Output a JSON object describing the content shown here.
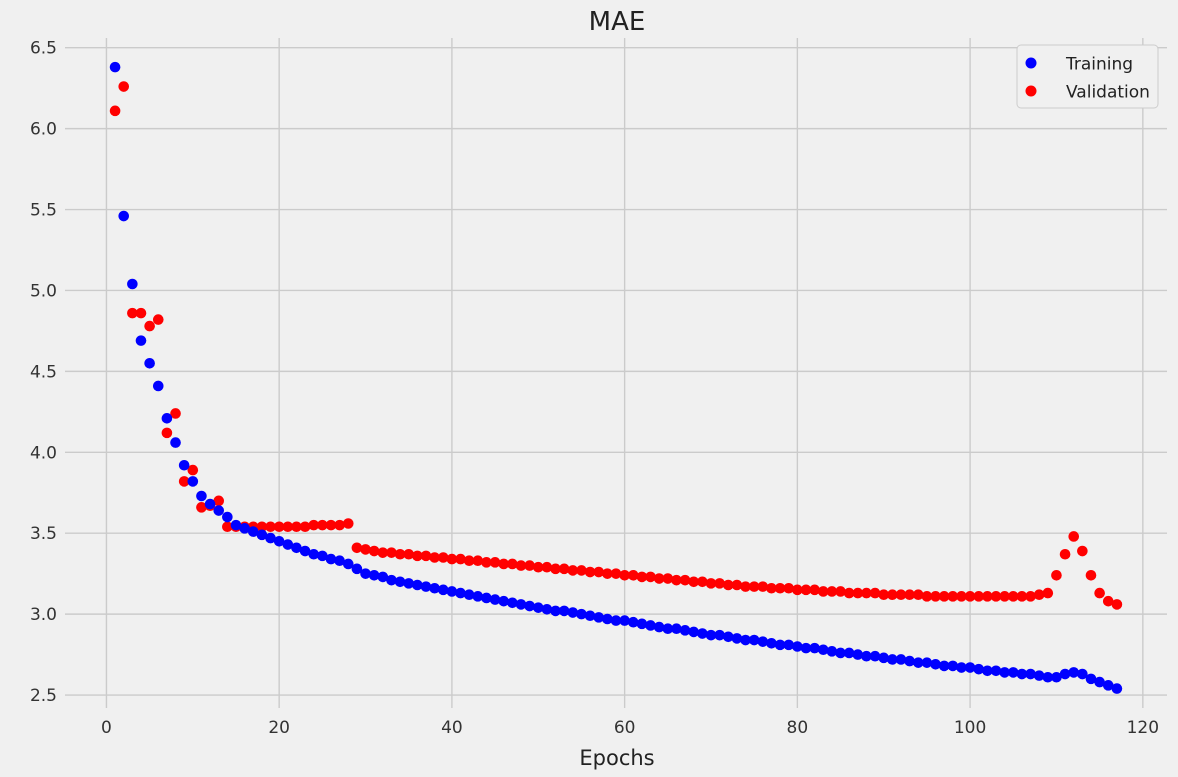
{
  "chart_data": {
    "type": "scatter",
    "title": "MAE",
    "xlabel": "Epochs",
    "ylabel": "",
    "xlim": [
      -4.8,
      122.8
    ],
    "ylim": [
      2.42,
      6.56
    ],
    "xticks": [
      0,
      20,
      40,
      60,
      80,
      100,
      120
    ],
    "yticks": [
      2.5,
      3.0,
      3.5,
      4.0,
      4.5,
      5.0,
      5.5,
      6.0,
      6.5
    ],
    "grid": true,
    "legend_position": "top-right",
    "colors": {
      "Training": "#0000ff",
      "Validation": "#ff0000"
    },
    "series": [
      {
        "name": "Training",
        "x": [
          1,
          2,
          3,
          4,
          5,
          6,
          7,
          8,
          9,
          10,
          11,
          12,
          13,
          14,
          15,
          16,
          17,
          18,
          19,
          20,
          21,
          22,
          23,
          24,
          25,
          26,
          27,
          28,
          29,
          30,
          31,
          32,
          33,
          34,
          35,
          36,
          37,
          38,
          39,
          40,
          41,
          42,
          43,
          44,
          45,
          46,
          47,
          48,
          49,
          50,
          51,
          52,
          53,
          54,
          55,
          56,
          57,
          58,
          59,
          60,
          61,
          62,
          63,
          64,
          65,
          66,
          67,
          68,
          69,
          70,
          71,
          72,
          73,
          74,
          75,
          76,
          77,
          78,
          79,
          80,
          81,
          82,
          83,
          84,
          85,
          86,
          87,
          88,
          89,
          90,
          91,
          92,
          93,
          94,
          95,
          96,
          97,
          98,
          99,
          100,
          101,
          102,
          103,
          104,
          105,
          106,
          107,
          108,
          109,
          110,
          111,
          112,
          113,
          114,
          115,
          116,
          117
        ],
        "y": [
          6.38,
          5.46,
          5.04,
          4.69,
          4.55,
          4.41,
          4.21,
          4.06,
          3.92,
          3.82,
          3.73,
          3.68,
          3.64,
          3.6,
          3.55,
          3.53,
          3.51,
          3.49,
          3.47,
          3.45,
          3.43,
          3.41,
          3.39,
          3.37,
          3.36,
          3.34,
          3.33,
          3.31,
          3.28,
          3.25,
          3.24,
          3.23,
          3.21,
          3.2,
          3.19,
          3.18,
          3.17,
          3.16,
          3.15,
          3.14,
          3.13,
          3.12,
          3.11,
          3.1,
          3.09,
          3.08,
          3.07,
          3.06,
          3.05,
          3.04,
          3.03,
          3.02,
          3.02,
          3.01,
          3.0,
          2.99,
          2.98,
          2.97,
          2.96,
          2.96,
          2.95,
          2.94,
          2.93,
          2.92,
          2.91,
          2.91,
          2.9,
          2.89,
          2.88,
          2.87,
          2.87,
          2.86,
          2.85,
          2.84,
          2.84,
          2.83,
          2.82,
          2.81,
          2.81,
          2.8,
          2.79,
          2.79,
          2.78,
          2.77,
          2.76,
          2.76,
          2.75,
          2.74,
          2.74,
          2.73,
          2.72,
          2.72,
          2.71,
          2.7,
          2.7,
          2.69,
          2.68,
          2.68,
          2.67,
          2.67,
          2.66,
          2.65,
          2.65,
          2.64,
          2.64,
          2.63,
          2.63,
          2.62,
          2.61,
          2.61,
          2.63,
          2.64,
          2.63,
          2.6,
          2.58,
          2.56,
          2.54
        ]
      },
      {
        "name": "Validation",
        "x": [
          1,
          2,
          3,
          4,
          5,
          6,
          7,
          8,
          9,
          10,
          11,
          12,
          13,
          14,
          15,
          16,
          17,
          18,
          19,
          20,
          21,
          22,
          23,
          24,
          25,
          26,
          27,
          28,
          29,
          30,
          31,
          32,
          33,
          34,
          35,
          36,
          37,
          38,
          39,
          40,
          41,
          42,
          43,
          44,
          45,
          46,
          47,
          48,
          49,
          50,
          51,
          52,
          53,
          54,
          55,
          56,
          57,
          58,
          59,
          60,
          61,
          62,
          63,
          64,
          65,
          66,
          67,
          68,
          69,
          70,
          71,
          72,
          73,
          74,
          75,
          76,
          77,
          78,
          79,
          80,
          81,
          82,
          83,
          84,
          85,
          86,
          87,
          88,
          89,
          90,
          91,
          92,
          93,
          94,
          95,
          96,
          97,
          98,
          99,
          100,
          101,
          102,
          103,
          104,
          105,
          106,
          107,
          108,
          109,
          110,
          111,
          112,
          113,
          114,
          115,
          116,
          117
        ],
        "y": [
          6.11,
          6.26,
          4.86,
          4.86,
          4.78,
          4.82,
          4.12,
          4.24,
          3.82,
          3.89,
          3.66,
          3.67,
          3.7,
          3.54,
          3.54,
          3.54,
          3.54,
          3.54,
          3.54,
          3.54,
          3.54,
          3.54,
          3.54,
          3.55,
          3.55,
          3.55,
          3.55,
          3.56,
          3.41,
          3.4,
          3.39,
          3.38,
          3.38,
          3.37,
          3.37,
          3.36,
          3.36,
          3.35,
          3.35,
          3.34,
          3.34,
          3.33,
          3.33,
          3.32,
          3.32,
          3.31,
          3.31,
          3.3,
          3.3,
          3.29,
          3.29,
          3.28,
          3.28,
          3.27,
          3.27,
          3.26,
          3.26,
          3.25,
          3.25,
          3.24,
          3.24,
          3.23,
          3.23,
          3.22,
          3.22,
          3.21,
          3.21,
          3.2,
          3.2,
          3.19,
          3.19,
          3.18,
          3.18,
          3.17,
          3.17,
          3.17,
          3.16,
          3.16,
          3.16,
          3.15,
          3.15,
          3.15,
          3.14,
          3.14,
          3.14,
          3.13,
          3.13,
          3.13,
          3.13,
          3.12,
          3.12,
          3.12,
          3.12,
          3.12,
          3.11,
          3.11,
          3.11,
          3.11,
          3.11,
          3.11,
          3.11,
          3.11,
          3.11,
          3.11,
          3.11,
          3.11,
          3.11,
          3.12,
          3.13,
          3.24,
          3.37,
          3.48,
          3.39,
          3.24,
          3.13,
          3.08,
          3.06
        ]
      }
    ]
  }
}
